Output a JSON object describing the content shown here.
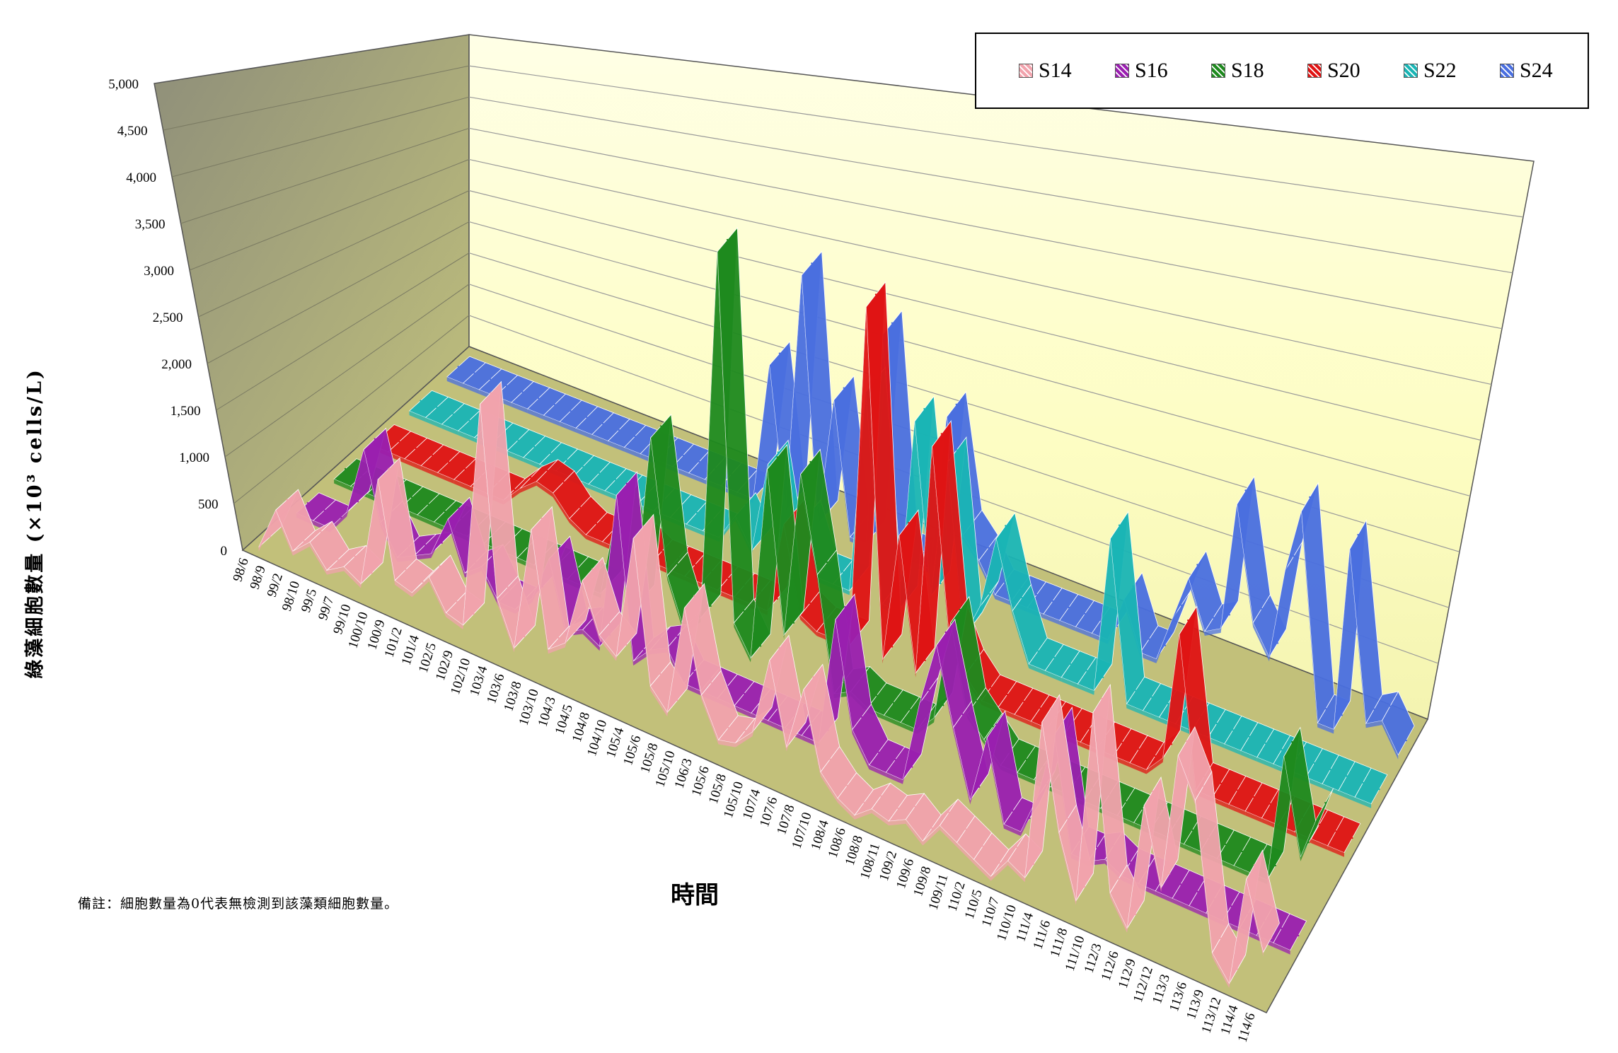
{
  "chart_data": {
    "type": "line",
    "style": "3d-ribbon",
    "title": "",
    "ylabel": "綠藻細胞數量 (×10³ cells/L)",
    "xlabel": "時間",
    "ylim": [
      0,
      5000
    ],
    "yticks": [
      "0",
      "500",
      "1,000",
      "1,500",
      "2,000",
      "2,500",
      "3,000",
      "3,500",
      "4,000",
      "4,500",
      "5,000"
    ],
    "categories": [
      "98/6",
      "98/9",
      "99/2",
      "98/10",
      "99/5",
      "99/7",
      "99/10",
      "100/10",
      "100/9",
      "101/2",
      "101/4",
      "102/5",
      "102/9",
      "102/10",
      "103/4",
      "103/6",
      "103/8",
      "103/10",
      "104/3",
      "104/5",
      "104/8",
      "104/10",
      "105/4",
      "105/6",
      "105/8",
      "105/10",
      "106/3",
      "105/6",
      "105/8",
      "105/10",
      "107/4",
      "107/6",
      "107/8",
      "107/10",
      "108/4",
      "108/6",
      "108/8",
      "108/11",
      "109/2",
      "109/6",
      "109/8",
      "109/11",
      "110/2",
      "110/5",
      "110/7",
      "110/10",
      "111/4",
      "111/6",
      "111/8",
      "111/10",
      "112/3",
      "112/6",
      "112/9",
      "112/12",
      "113/3",
      "113/6",
      "113/9",
      "113/12",
      "114/4",
      "114/6"
    ],
    "legend_position": "top-right",
    "grid": true,
    "series": [
      {
        "name": "S14",
        "color": "#f2a3ad",
        "values": [
          0,
          480,
          120,
          300,
          80,
          200,
          100,
          1300,
          300,
          250,
          500,
          200,
          150,
          2600,
          600,
          150,
          1500,
          300,
          450,
          1200,
          700,
          550,
          1900,
          400,
          200,
          1400,
          550,
          150,
          200,
          400,
          1250,
          400,
          1100,
          300,
          100,
          0,
          150,
          100,
          200,
          50,
          300,
          200,
          100,
          0,
          250,
          150,
          1900,
          800,
          150,
          2250,
          400,
          100,
          1500,
          700,
          2200,
          1800,
          250,
          0,
          1200,
          500
        ]
      },
      {
        "name": "S16",
        "color": "#9a1fb0",
        "values": [
          0,
          0,
          0,
          250,
          1000,
          300,
          0,
          100,
          200,
          650,
          150,
          300,
          0,
          0,
          200,
          700,
          0,
          100,
          0,
          1700,
          0,
          200,
          300,
          0,
          0,
          0,
          0,
          0,
          0,
          0,
          0,
          0,
          1400,
          300,
          0,
          0,
          0,
          900,
          1600,
          800,
          100,
          850,
          0,
          0,
          450,
          1200,
          0,
          0,
          100,
          0,
          0,
          0,
          0,
          0,
          0,
          0,
          0,
          0,
          0,
          0
        ]
      },
      {
        "name": "S18",
        "color": "#1e8a1e",
        "values": [
          0,
          0,
          0,
          0,
          0,
          0,
          0,
          0,
          0,
          0,
          0,
          0,
          0,
          0,
          0,
          0,
          0,
          1000,
          0,
          1900,
          500,
          0,
          200,
          4200,
          300,
          0,
          2100,
          400,
          2200,
          1200,
          0,
          100,
          0,
          0,
          0,
          0,
          200,
          1300,
          400,
          200,
          0,
          0,
          0,
          0,
          0,
          0,
          0,
          0,
          0,
          0,
          0,
          0,
          0,
          0,
          0,
          0,
          0,
          1400,
          400,
          900
        ]
      },
      {
        "name": "S20",
        "color": "#e01414",
        "values": [
          0,
          0,
          0,
          0,
          0,
          0,
          0,
          0,
          0,
          200,
          350,
          300,
          100,
          0,
          0,
          0,
          100,
          0,
          0,
          0,
          0,
          0,
          0,
          0,
          0,
          1000,
          100,
          0,
          0,
          0,
          3700,
          0,
          1400,
          0,
          2500,
          600,
          200,
          0,
          0,
          0,
          0,
          0,
          0,
          0,
          0,
          0,
          0,
          0,
          200,
          1600,
          0,
          0,
          0,
          0,
          0,
          0,
          0,
          0,
          0,
          0
        ]
      },
      {
        "name": "S22",
        "color": "#1ab5b5",
        "values": [
          0,
          0,
          0,
          0,
          0,
          0,
          0,
          0,
          0,
          0,
          0,
          0,
          0,
          0,
          0,
          0,
          0,
          0,
          0,
          0,
          300,
          0,
          1000,
          0,
          500,
          0,
          0,
          0,
          2200,
          0,
          0,
          2100,
          300,
          1800,
          0,
          400,
          1200,
          500,
          0,
          0,
          0,
          0,
          0,
          1700,
          0,
          0,
          0,
          0,
          0,
          0,
          0,
          0,
          0,
          0,
          0,
          0,
          0,
          0,
          0,
          0
        ]
      },
      {
        "name": "S24",
        "color": "#4a6fe0",
        "values": [
          0,
          0,
          0,
          0,
          0,
          0,
          0,
          0,
          0,
          0,
          0,
          0,
          0,
          0,
          0,
          0,
          0,
          0,
          0,
          0,
          1500,
          0,
          2600,
          0,
          1400,
          0,
          0,
          2300,
          0,
          0,
          0,
          1700,
          500,
          300,
          0,
          0,
          0,
          0,
          0,
          0,
          0,
          0,
          500,
          0,
          0,
          500,
          1000,
          500,
          600,
          2000,
          800,
          500,
          1500,
          2200,
          0,
          0,
          2000,
          200,
          300,
          0
        ]
      }
    ]
  },
  "legend": {
    "items": [
      {
        "label": "S14",
        "color": "#f2a3ad"
      },
      {
        "label": "S16",
        "color": "#9a1fb0"
      },
      {
        "label": "S18",
        "color": "#1e8a1e"
      },
      {
        "label": "S20",
        "color": "#e01414"
      },
      {
        "label": "S22",
        "color": "#1ab5b5"
      },
      {
        "label": "S24",
        "color": "#4a6fe0"
      }
    ]
  },
  "note": "備註：細胞數量為0代表無檢測到該藻類細胞數量。"
}
